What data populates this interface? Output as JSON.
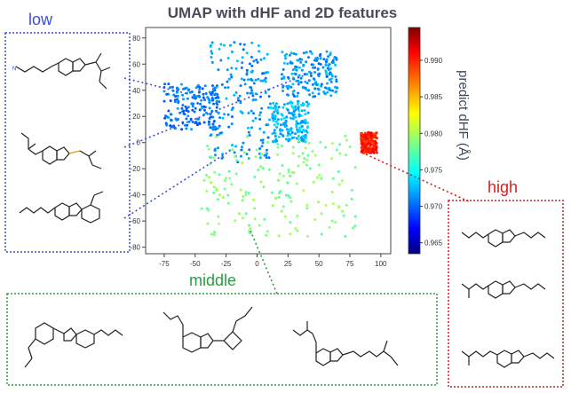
{
  "chart_data": {
    "type": "scatter",
    "title": "UMAP with dHF and 2D features",
    "xlabel": "",
    "ylabel": "",
    "xlim": [
      -90,
      108
    ],
    "ylim": [
      -85,
      88
    ],
    "xticks": [
      -75,
      -50,
      -25,
      0,
      25,
      50,
      75,
      100
    ],
    "yticks": [
      80,
      60,
      40,
      20,
      0,
      -20,
      -40,
      -60,
      -80
    ],
    "grid": false,
    "colorbar": {
      "label": "predict dHF (Å)",
      "min": 0.9635,
      "max": 0.9945,
      "ticks": [
        0.99,
        0.985,
        0.98,
        0.975,
        0.97,
        0.965
      ],
      "colormap": "jet"
    },
    "clusters": [
      {
        "name": "low",
        "x_range": [
          -75,
          -30
        ],
        "y_range": [
          10,
          45
        ],
        "value": 0.971
      },
      {
        "name": "low",
        "x_range": [
          -38,
          10
        ],
        "y_range": [
          -15,
          78
        ],
        "value": 0.972
      },
      {
        "name": "low",
        "x_range": [
          20,
          65
        ],
        "y_range": [
          35,
          70
        ],
        "value": 0.972
      },
      {
        "name": "low",
        "x_range": [
          10,
          42
        ],
        "y_range": [
          0,
          32
        ],
        "value": 0.973
      },
      {
        "name": "middle",
        "x_range": [
          -45,
          80
        ],
        "y_range": [
          -72,
          5
        ],
        "value": 0.979
      },
      {
        "name": "high",
        "x_range": [
          84,
          97
        ],
        "y_range": [
          -8,
          8
        ],
        "value": 0.99
      }
    ]
  },
  "labels": {
    "low": "low",
    "middle": "middle",
    "high": "high"
  },
  "colors": {
    "low": "#3b4fd8",
    "middle": "#2aa040",
    "high": "#d21f1f"
  }
}
